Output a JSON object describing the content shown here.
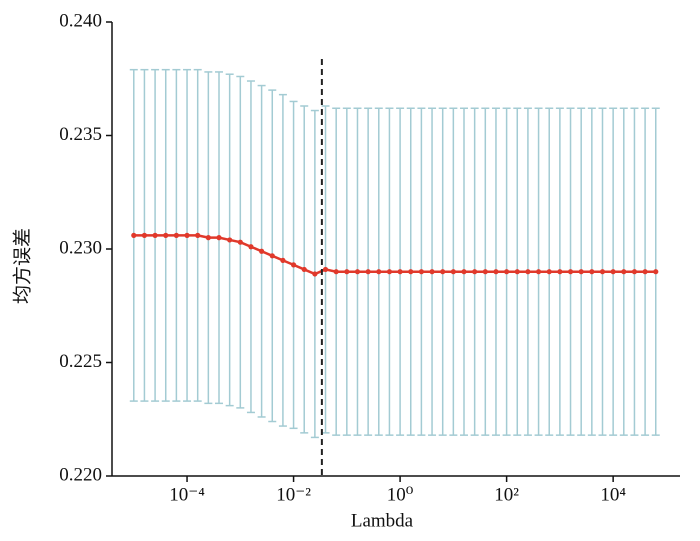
{
  "chart_data": {
    "type": "errorbar",
    "xlabel": "Lambda",
    "ylabel": "均方误差",
    "xscale": "log",
    "x": [
      1e-05,
      1.585e-05,
      2.512e-05,
      3.981e-05,
      6.31e-05,
      0.0001,
      0.0001585,
      0.0002512,
      0.0003981,
      0.000631,
      0.001,
      0.001585,
      0.002512,
      0.003981,
      0.00631,
      0.01,
      0.01585,
      0.02512,
      0.03981,
      0.0631,
      0.1,
      0.1585,
      0.2512,
      0.3981,
      0.631,
      1,
      1.585,
      2.512,
      3.981,
      6.31,
      10,
      15.85,
      25.12,
      39.81,
      63.1,
      100,
      158.5,
      251.2,
      398.1,
      631,
      1000,
      1585,
      2512,
      3981,
      6310,
      10000,
      15850,
      25120,
      39810,
      63100
    ],
    "series": [
      {
        "color": "#e0392b",
        "error_color": "#a3cbd3",
        "values": [
          0.2306,
          0.2306,
          0.2306,
          0.2306,
          0.2306,
          0.2306,
          0.2306,
          0.2305,
          0.2305,
          0.2304,
          0.2303,
          0.2301,
          0.2299,
          0.2297,
          0.2295,
          0.2293,
          0.2291,
          0.2289,
          0.2291,
          0.229,
          0.229,
          0.229,
          0.229,
          0.229,
          0.229,
          0.229,
          0.229,
          0.229,
          0.229,
          0.229,
          0.229,
          0.229,
          0.229,
          0.229,
          0.229,
          0.229,
          0.229,
          0.229,
          0.229,
          0.229,
          0.229,
          0.229,
          0.229,
          0.229,
          0.229,
          0.229,
          0.229,
          0.229,
          0.229,
          0.229
        ],
        "errors": [
          0.0073,
          0.0073,
          0.0073,
          0.0073,
          0.0073,
          0.0073,
          0.0073,
          0.0073,
          0.0073,
          0.0073,
          0.0073,
          0.0073,
          0.0073,
          0.0073,
          0.0073,
          0.0072,
          0.0072,
          0.0072,
          0.0072,
          0.0072,
          0.0072,
          0.0072,
          0.0072,
          0.0072,
          0.0072,
          0.0072,
          0.0072,
          0.0072,
          0.0072,
          0.0072,
          0.0072,
          0.0072,
          0.0072,
          0.0072,
          0.0072,
          0.0072,
          0.0072,
          0.0072,
          0.0072,
          0.0072,
          0.0072,
          0.0072,
          0.0072,
          0.0072,
          0.0072,
          0.0072,
          0.0072,
          0.0072,
          0.0072,
          0.0072
        ]
      }
    ],
    "vline": 0.034,
    "vline_color": "#222222",
    "xlim": [
      3.9e-06,
      180000
    ],
    "ylim": [
      0.22,
      0.24
    ],
    "xticks": [
      {
        "value": 0.0001,
        "label": "10⁻⁴"
      },
      {
        "value": 0.01,
        "label": "10⁻²"
      },
      {
        "value": 1,
        "label": "10⁰"
      },
      {
        "value": 100,
        "label": "10²"
      },
      {
        "value": 10000,
        "label": "10⁴"
      }
    ],
    "yticks": [
      {
        "value": 0.22,
        "label": "0.220"
      },
      0.225,
      {
        "value": 0.23,
        "label": "0.230"
      },
      0.235,
      {
        "value": 0.24,
        "label": "0.240"
      }
    ]
  }
}
